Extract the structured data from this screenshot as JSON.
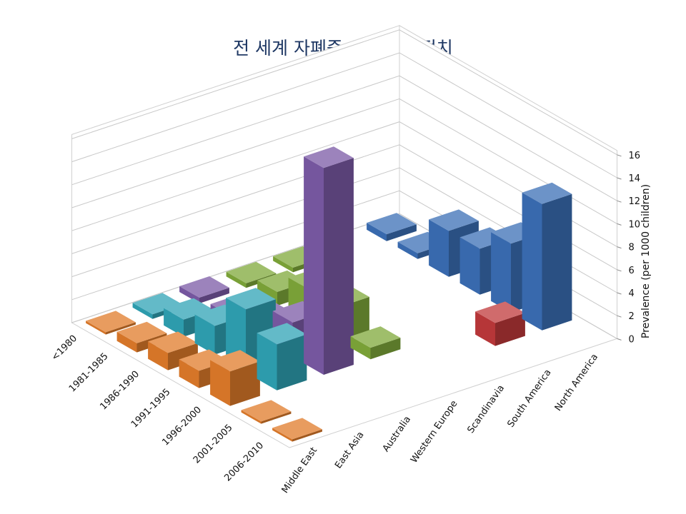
{
  "chart_data": {
    "type": "bar",
    "title": "전 세계 자폐증 유병률 추정치",
    "zlabel": "Prevalence (per 1000 children)",
    "zlim": [
      0,
      16
    ],
    "zticks": [
      0,
      2,
      4,
      6,
      8,
      10,
      12,
      14,
      16
    ],
    "periods": [
      "2006-2010",
      "2001-2005",
      "1996-2000",
      "1991-1995",
      "1986-1990",
      "1981-1985",
      "<1980"
    ],
    "regions": [
      "Middle East",
      "East Asia",
      "Australia",
      "Western Europe",
      "Scandinavia",
      "South America",
      "North America"
    ],
    "series": [
      {
        "region": "Middle East",
        "values": [
          0.2,
          0.2,
          3.0,
          1.5,
          1.5,
          0.8,
          0.2
        ],
        "color": "#e07b2a"
      },
      {
        "region": "East Asia",
        "values": [
          null,
          null,
          4.0,
          5.5,
          2.5,
          1.5,
          0.4
        ],
        "color": "#2fa3b5"
      },
      {
        "region": "Australia",
        "values": [
          null,
          null,
          18.0,
          3.0,
          1.5,
          0.5,
          0.5
        ],
        "color": "#7b5aa6"
      },
      {
        "region": "Western Europe",
        "values": [
          null,
          null,
          1.0,
          3.0,
          3.0,
          1.2,
          0.4
        ],
        "color": "#7fa83a"
      },
      {
        "region": "Scandinavia",
        "values": [
          null,
          null,
          null,
          null,
          null,
          null,
          0.4
        ],
        "color": "#7fa83a"
      },
      {
        "region": "South America",
        "values": [
          null,
          2.0,
          null,
          null,
          null,
          null,
          null
        ],
        "color": "#c0393b"
      },
      {
        "region": "North America",
        "values": [
          null,
          11.0,
          6.0,
          4.0,
          4.0,
          0.5,
          0.6
        ],
        "color": "#3b6fb6"
      }
    ],
    "legend": false,
    "grid": true
  }
}
